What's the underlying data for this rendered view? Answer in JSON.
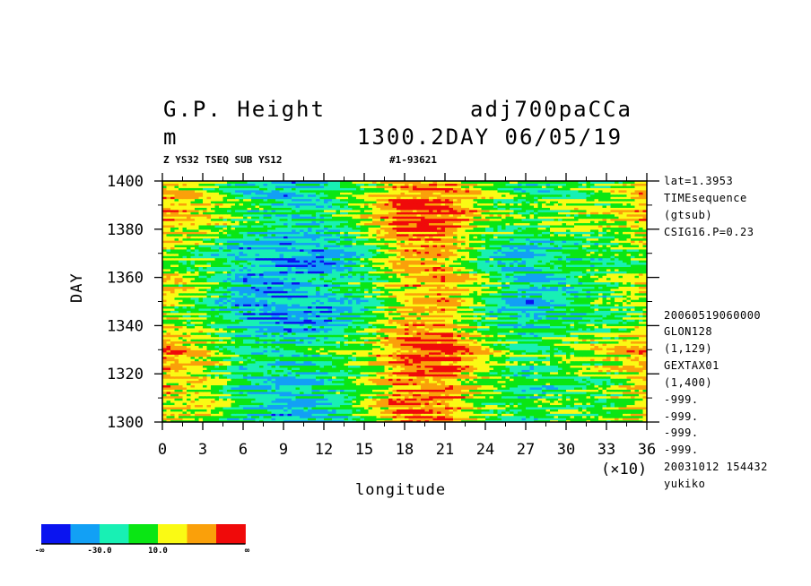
{
  "header": {
    "variable_name": "G.P. Height",
    "dataset_name": "adj700paCCa",
    "unit": "m",
    "time_label": "1300.2DAY 06/05/19",
    "subtitle_left": "Z YS32 TSEQ SUB YS12",
    "subtitle_right": "#1-93621"
  },
  "side_info": [
    "lat=1.3953",
    "TIMEsequence",
    "(gtsub)",
    "CSIG16.P=0.23",
    "20060519060000",
    "GLON128",
    "(1,129)",
    "GEXTAX01",
    "(1,400)",
    "-999.",
    "-999.",
    "-999.",
    "-999.",
    "20031012 154432",
    "yukiko"
  ],
  "colorbar": {
    "colors": [
      "#0a14f0",
      "#12a0f5",
      "#18f0b4",
      "#0ae614",
      "#fafa14",
      "#faa00a",
      "#f00a0a"
    ],
    "labels": [
      "-∞",
      "-30.0",
      "10.0",
      "∞"
    ]
  },
  "chart_data": {
    "type": "heatmap",
    "xlabel": "longitude",
    "ylabel": "DAY",
    "x_multiplier": "(×10)",
    "xlim": [
      0,
      36
    ],
    "ylim": [
      1300,
      1400
    ],
    "x_ticks": [
      "0",
      "3",
      "6",
      "9",
      "12",
      "15",
      "18",
      "21",
      "24",
      "27",
      "30",
      "33",
      "36"
    ],
    "y_ticks": [
      "1300",
      "1320",
      "1340",
      "1360",
      "1380",
      "1400"
    ],
    "x_tick_values": [
      0,
      3,
      6,
      9,
      12,
      15,
      18,
      21,
      24,
      27,
      30,
      33,
      36
    ],
    "y_tick_values": [
      1300,
      1320,
      1340,
      1360,
      1380,
      1400
    ],
    "longitude_profile": {
      "longitude": [
        0,
        3,
        6,
        9,
        12,
        15,
        18,
        21,
        24,
        27,
        30,
        33,
        36
      ],
      "level_index": [
        4.3,
        3.6,
        1.9,
        1.3,
        1.8,
        3.0,
        4.8,
        5.0,
        3.2,
        2.0,
        2.6,
        3.0,
        4.2
      ]
    }
  }
}
